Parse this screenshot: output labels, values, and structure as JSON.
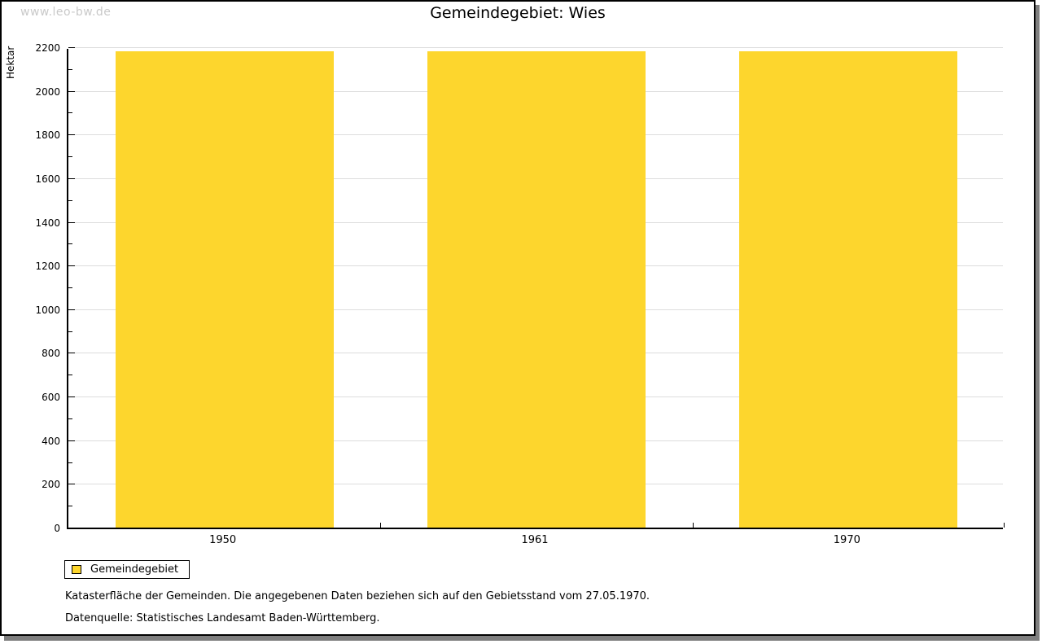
{
  "watermark": "www.leo-bw.de",
  "title": "Gemeindegebiet: Wies",
  "chart_data": {
    "type": "bar",
    "title": "Gemeindegebiet: Wies",
    "categories": [
      "1950",
      "1961",
      "1970"
    ],
    "series": [
      {
        "name": "Gemeindegebiet",
        "values": [
          2180,
          2180,
          2180
        ]
      }
    ],
    "xlabel": "",
    "ylabel": "Hektar",
    "ylim": [
      0,
      2200
    ],
    "ytick_step": 200,
    "ytick_minor_step": 100,
    "grid": true,
    "legend_position": "bottom-left",
    "bar_color": "#fdd62d",
    "bar_width_fraction": 0.7
  },
  "legend": {
    "label": "Gemeindegebiet",
    "swatch_color": "#fdd62d"
  },
  "footnotes": {
    "line1": "Katasterfläche der Gemeinden. Die angegebenen Daten beziehen sich auf den Gebietsstand vom 27.05.1970.",
    "line2": "Datenquelle: Statistisches Landesamt Baden-Württemberg."
  },
  "colors": {
    "bar": "#fdd62d",
    "grid": "#dddddd",
    "axis": "#000000",
    "watermark": "#c9c9c9",
    "shadow": "#7f7f7f"
  }
}
